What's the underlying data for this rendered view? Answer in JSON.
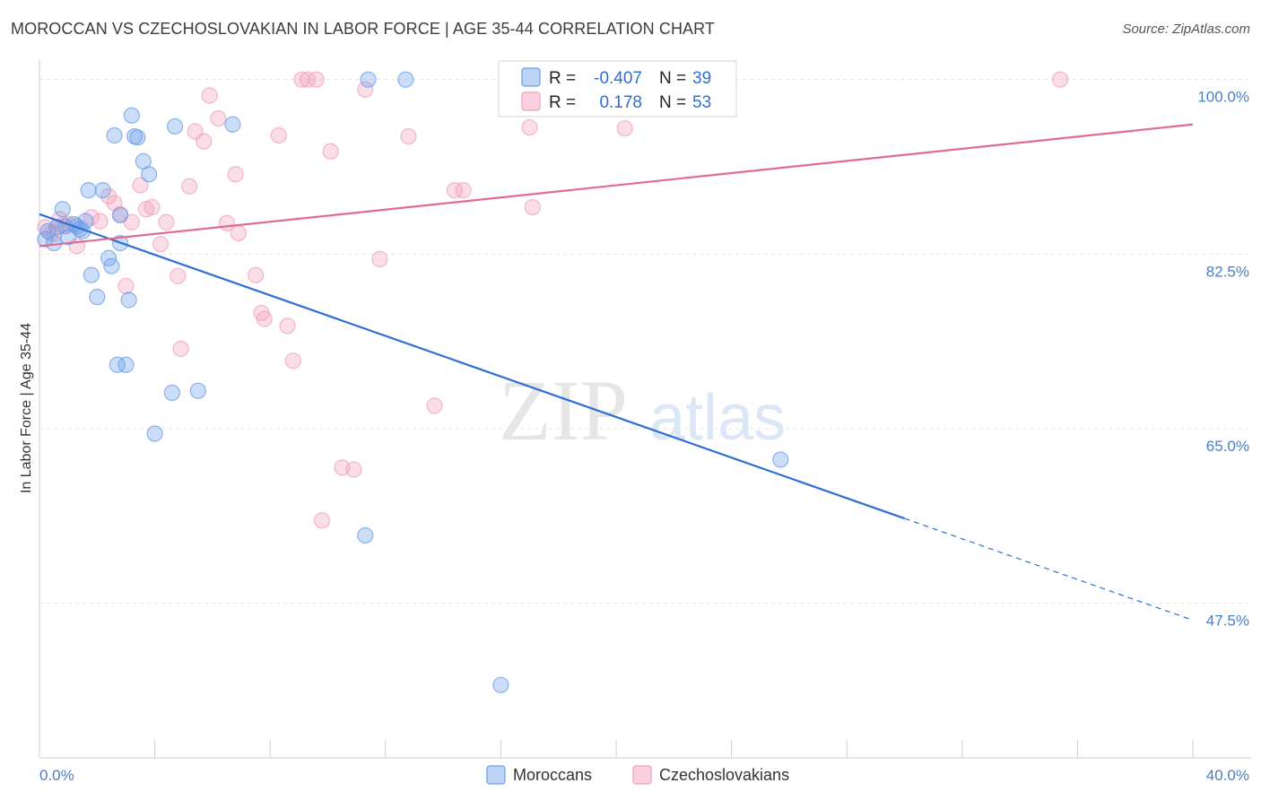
{
  "title": "MOROCCAN VS CZECHOSLOVAKIAN IN LABOR FORCE | AGE 35-44 CORRELATION CHART",
  "source": "Source: ZipAtlas.com",
  "watermark": {
    "zip": "ZIP",
    "atlas": "atlas"
  },
  "colors": {
    "moroccans": "#6b9ee8",
    "moroccans_line": "#2e6fd0",
    "czech": "#f0a0bb",
    "czech_line": "#e06b94",
    "tick": "#4a7ec7"
  },
  "legend": {
    "r_label": "R =",
    "n_label": "N =",
    "rows": [
      {
        "series": "Moroccans",
        "r": "-0.407",
        "n": "39"
      },
      {
        "series": "Czechoslovakians",
        "r": "0.178",
        "n": "53"
      }
    ]
  },
  "chart_data": {
    "type": "scatter",
    "title": "MOROCCAN VS CZECHOSLOVAKIAN IN LABOR FORCE | AGE 35-44 CORRELATION CHART",
    "xlabel": "",
    "ylabel": "In Labor Force | Age 35-44",
    "xlim": [
      0,
      40
    ],
    "ylim": [
      32,
      101.5
    ],
    "x_tick_labels": [
      "0.0%",
      "40.0%"
    ],
    "y_ticks": [
      47.5,
      65.0,
      82.5,
      100.0
    ],
    "y_tick_labels": [
      "47.5%",
      "65.0%",
      "82.5%",
      "100.0%"
    ],
    "grid": true,
    "legend_position": "top-center",
    "series": [
      {
        "name": "Moroccans",
        "points": [
          [
            0.2,
            84.0
          ],
          [
            0.3,
            84.8
          ],
          [
            0.5,
            83.6
          ],
          [
            0.6,
            85.2
          ],
          [
            0.8,
            87.0
          ],
          [
            0.9,
            85.3
          ],
          [
            1.0,
            84.2
          ],
          [
            1.2,
            85.5
          ],
          [
            1.4,
            85.0
          ],
          [
            1.5,
            84.8
          ],
          [
            1.6,
            85.8
          ],
          [
            1.7,
            88.9
          ],
          [
            1.8,
            80.4
          ],
          [
            2.0,
            78.2
          ],
          [
            2.2,
            88.9
          ],
          [
            2.4,
            82.1
          ],
          [
            2.5,
            81.3
          ],
          [
            2.6,
            94.4
          ],
          [
            2.7,
            71.4
          ],
          [
            2.8,
            83.6
          ],
          [
            2.8,
            86.4
          ],
          [
            3.0,
            71.4
          ],
          [
            3.1,
            77.9
          ],
          [
            3.2,
            96.4
          ],
          [
            3.3,
            94.3
          ],
          [
            3.4,
            94.2
          ],
          [
            3.6,
            91.8
          ],
          [
            3.8,
            90.5
          ],
          [
            4.0,
            64.5
          ],
          [
            4.6,
            68.6
          ],
          [
            4.7,
            95.3
          ],
          [
            5.5,
            68.8
          ],
          [
            6.7,
            95.5
          ],
          [
            11.3,
            54.3
          ],
          [
            11.4,
            100.0
          ],
          [
            12.7,
            100.0
          ],
          [
            16.0,
            39.3
          ],
          [
            25.7,
            61.9
          ],
          [
            1.3,
            85.3
          ]
        ]
      },
      {
        "name": "Czechoslovakians",
        "points": [
          [
            0.2,
            85.2
          ],
          [
            0.4,
            84.6
          ],
          [
            0.5,
            84.5
          ],
          [
            0.7,
            86.0
          ],
          [
            0.8,
            85.4
          ],
          [
            1.0,
            85.5
          ],
          [
            1.3,
            83.3
          ],
          [
            1.8,
            86.2
          ],
          [
            2.1,
            85.8
          ],
          [
            2.4,
            88.3
          ],
          [
            2.6,
            87.6
          ],
          [
            2.8,
            86.5
          ],
          [
            3.0,
            79.3
          ],
          [
            3.2,
            85.7
          ],
          [
            3.5,
            89.4
          ],
          [
            3.7,
            87.0
          ],
          [
            3.9,
            87.2
          ],
          [
            4.2,
            83.5
          ],
          [
            4.4,
            85.7
          ],
          [
            4.8,
            80.3
          ],
          [
            4.9,
            73.0
          ],
          [
            5.2,
            89.3
          ],
          [
            5.4,
            94.8
          ],
          [
            5.7,
            93.8
          ],
          [
            5.9,
            98.4
          ],
          [
            6.2,
            96.1
          ],
          [
            6.5,
            85.6
          ],
          [
            6.8,
            90.5
          ],
          [
            6.9,
            84.6
          ],
          [
            7.5,
            80.4
          ],
          [
            7.7,
            76.6
          ],
          [
            7.8,
            76.0
          ],
          [
            8.3,
            94.4
          ],
          [
            8.6,
            75.3
          ],
          [
            8.8,
            71.8
          ],
          [
            9.1,
            100.0
          ],
          [
            9.3,
            100.0
          ],
          [
            9.6,
            100.0
          ],
          [
            9.8,
            55.8
          ],
          [
            10.1,
            92.8
          ],
          [
            10.5,
            61.1
          ],
          [
            10.9,
            60.9
          ],
          [
            11.3,
            99.0
          ],
          [
            11.8,
            82.0
          ],
          [
            12.8,
            94.3
          ],
          [
            13.7,
            67.3
          ],
          [
            14.4,
            88.9
          ],
          [
            14.7,
            88.9
          ],
          [
            16.6,
            100.0
          ],
          [
            17.0,
            95.2
          ],
          [
            17.1,
            87.2
          ],
          [
            20.3,
            95.1
          ],
          [
            35.4,
            100.0
          ]
        ]
      }
    ],
    "trendlines": [
      {
        "series": "Moroccans",
        "solid": [
          [
            0,
            86.5
          ],
          [
            30.0,
            56.0
          ]
        ],
        "dashed": [
          [
            30.0,
            56.0
          ],
          [
            40.0,
            45.8
          ]
        ]
      },
      {
        "series": "Czechoslovakians",
        "solid": [
          [
            0,
            83.3
          ],
          [
            40.0,
            95.5
          ]
        ]
      }
    ]
  }
}
